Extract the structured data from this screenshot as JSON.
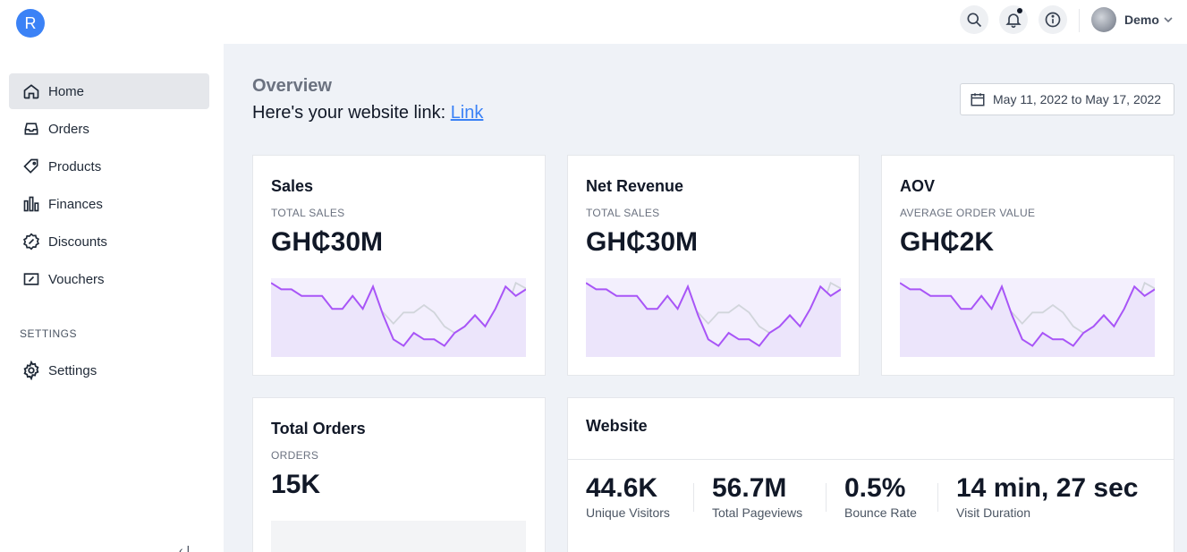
{
  "app": {
    "logo_letter": "R",
    "brand_color": "#3b82f6"
  },
  "topbar": {
    "user_name": "Demo",
    "icons": [
      "search-icon",
      "bell-icon",
      "info-icon"
    ],
    "notification_dot": true
  },
  "sidebar": {
    "items": [
      {
        "label": "Home",
        "icon": "home-icon",
        "active": true
      },
      {
        "label": "Orders",
        "icon": "inbox-icon",
        "active": false
      },
      {
        "label": "Products",
        "icon": "tag-icon",
        "active": false
      },
      {
        "label": "Finances",
        "icon": "bank-icon",
        "active": false
      },
      {
        "label": "Discounts",
        "icon": "discount-badge-icon",
        "active": false
      },
      {
        "label": "Vouchers",
        "icon": "voucher-icon",
        "active": false
      }
    ],
    "section_label": "SETTINGS",
    "settings_item": {
      "label": "Settings",
      "icon": "gear-icon"
    }
  },
  "main": {
    "title": "Overview",
    "website_link_text": "Here's your website link:",
    "website_link_label": "Link",
    "date_range": "May 11, 2022 to May 17, 2022"
  },
  "cards": [
    {
      "title": "Sales",
      "subtitle": "TOTAL SALES",
      "value": "GH₵30M"
    },
    {
      "title": "Net Revenue",
      "subtitle": "TOTAL SALES",
      "value": "GH₵30M"
    },
    {
      "title": "AOV",
      "subtitle": "AVERAGE ORDER VALUE",
      "value": "GH₵2K"
    },
    {
      "title": "Total Orders",
      "subtitle": "ORDERS",
      "value": "15K"
    }
  ],
  "website": {
    "title": "Website",
    "stats": [
      {
        "value": "44.6K",
        "label": "Unique Visitors"
      },
      {
        "value": "56.7M",
        "label": "Total Pageviews"
      },
      {
        "value": "0.5%",
        "label": "Bounce Rate"
      },
      {
        "value": "14 min, 27 sec",
        "label": "Visit Duration"
      }
    ]
  },
  "chart_data": [
    {
      "type": "line",
      "series": [
        {
          "values": [
            8,
            7.3,
            7.3,
            6.6,
            6.6,
            6.6,
            5.2,
            5.2,
            6.6,
            5.2,
            7.6,
            4.5,
            1.9,
            1.2,
            2.6,
            1.9,
            1.9,
            1.2,
            2.6,
            3.3,
            4.5,
            3.3,
            5.2,
            7.6,
            6.6,
            7.3
          ]
        },
        {
          "values": [
            6.6,
            6.6,
            5.2,
            4.8,
            4.8,
            4.8,
            4.8,
            4.8,
            4.8,
            4.8,
            3.6,
            4.8,
            3.6,
            4.8,
            4.8,
            5.6,
            4.8,
            3.3,
            2.6,
            2.6,
            2.6,
            2.6,
            2.6,
            4.8,
            8,
            7.4
          ]
        }
      ],
      "colors": [
        "#a855f7",
        "#d1d5db"
      ],
      "fill_color": "#f3effd"
    }
  ]
}
